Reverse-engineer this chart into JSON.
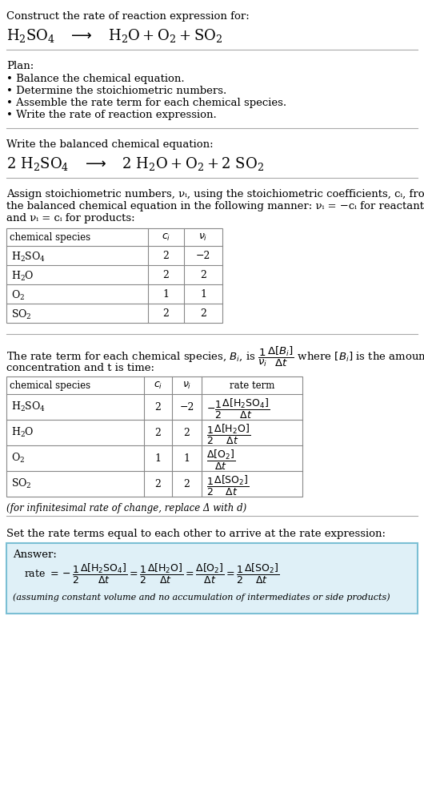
{
  "bg_color": "#ffffff",
  "text_color": "#000000",
  "section1_header": "Construct the rate of reaction expression for:",
  "section2_bullets": [
    "Plan:",
    "• Balance the chemical equation.",
    "• Determine the stoichiometric numbers.",
    "• Assemble the rate term for each chemical species.",
    "• Write the rate of reaction expression."
  ],
  "section3_header": "Write the balanced chemical equation:",
  "section4_intro_lines": [
    "Assign stoichiometric numbers, νᵢ, using the stoichiometric coefficients, cᵢ, from",
    "the balanced chemical equation in the following manner: νᵢ = −cᵢ for reactants",
    "and νᵢ = cᵢ for products:"
  ],
  "table1_headers": [
    "chemical species",
    "cᵢ",
    "νᵢ"
  ],
  "table1_rows": [
    [
      "H₂SO₄",
      "2",
      "−2"
    ],
    [
      "H₂O",
      "2",
      "2"
    ],
    [
      "O₂",
      "1",
      "1"
    ],
    [
      "SO₂",
      "2",
      "2"
    ]
  ],
  "section5_intro_line1": "The rate term for each chemical species, Bᵢ, is",
  "section5_intro_line2": "concentration and t is time:",
  "table2_headers": [
    "chemical species",
    "cᵢ",
    "νᵢ",
    "rate term"
  ],
  "table2_rows": [
    [
      "H₂SO₄",
      "2",
      "−2"
    ],
    [
      "H₂O",
      "2",
      "2"
    ],
    [
      "O₂",
      "1",
      "1"
    ],
    [
      "SO₂",
      "2",
      "2"
    ]
  ],
  "footnote": "(for infinitesimal rate of change, replace Δ with d)",
  "section6_header": "Set the rate terms equal to each other to arrive at the rate expression:",
  "answer_label": "Answer:",
  "answer_note": "(assuming constant volume and no accumulation of intermediates or side products)",
  "answer_box_color": "#dff0f7",
  "answer_border_color": "#7bbfd4"
}
